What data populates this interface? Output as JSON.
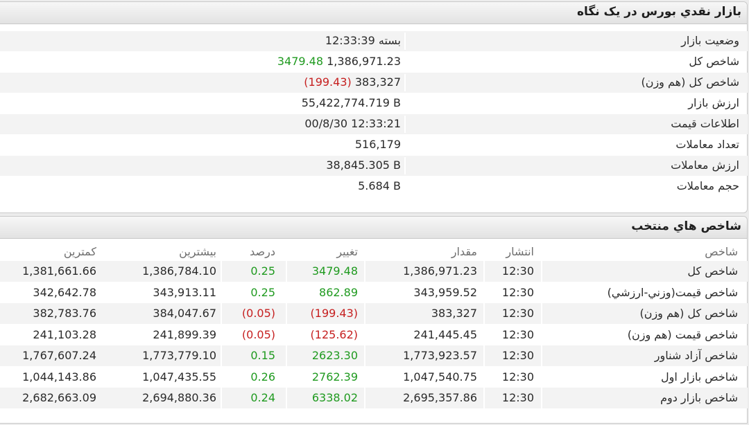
{
  "summary": {
    "title": "بازار نقدي بورس در يک نگاه",
    "rows": [
      {
        "label": "وضعيت بازار",
        "value": "بسته 12:33:39",
        "extra": "",
        "extra_class": ""
      },
      {
        "label": "شاخص کل",
        "value": "1,386,971.23",
        "extra": "3479.48",
        "extra_class": "pos"
      },
      {
        "label": "شاخص کل (هم وزن)",
        "value": "383,327",
        "extra": "(199.43)",
        "extra_class": "neg"
      },
      {
        "label": "ارزش بازار",
        "value": "55,422,774.719 B",
        "extra": "",
        "extra_class": ""
      },
      {
        "label": "اطلاعات قيمت",
        "value": "00/8/30 12:33:21",
        "extra": "",
        "extra_class": ""
      },
      {
        "label": "تعداد معاملات",
        "value": "516,179",
        "extra": "",
        "extra_class": ""
      },
      {
        "label": "ارزش معاملات",
        "value": "38,845.305 B",
        "extra": "",
        "extra_class": ""
      },
      {
        "label": "حجم معاملات",
        "value": "5.684 B",
        "extra": "",
        "extra_class": ""
      }
    ]
  },
  "indices": {
    "title": "شاخص هاي منتخب",
    "headers": {
      "name": "شاخص",
      "time": "انتشار",
      "amount": "مقدار",
      "change": "تغيير",
      "percent": "درصد",
      "high": "بيشترين",
      "low": "کمترين"
    },
    "rows": [
      {
        "name": "شاخص کل",
        "time": "12:30",
        "amount": "1,386,971.23",
        "change": "3479.48",
        "percent": "0.25",
        "high": "1,386,784.10",
        "low": "1,381,661.66",
        "dir": "pos"
      },
      {
        "name": "شاخص قيمت(وزني-ارزشي)",
        "time": "12:30",
        "amount": "343,959.52",
        "change": "862.89",
        "percent": "0.25",
        "high": "343,913.11",
        "low": "342,642.78",
        "dir": "pos"
      },
      {
        "name": "شاخص کل (هم وزن)",
        "time": "12:30",
        "amount": "383,327",
        "change": "(199.43)",
        "percent": "(0.05)",
        "high": "384,047.67",
        "low": "382,783.76",
        "dir": "neg"
      },
      {
        "name": "شاخص قيمت (هم وزن)",
        "time": "12:30",
        "amount": "241,445.45",
        "change": "(125.62)",
        "percent": "(0.05)",
        "high": "241,899.39",
        "low": "241,103.28",
        "dir": "neg"
      },
      {
        "name": "شاخص آزاد شناور",
        "time": "12:30",
        "amount": "1,773,923.57",
        "change": "2623.30",
        "percent": "0.15",
        "high": "1,773,779.10",
        "low": "1,767,607.24",
        "dir": "pos"
      },
      {
        "name": "شاخص بازار اول",
        "time": "12:30",
        "amount": "1,047,540.75",
        "change": "2762.39",
        "percent": "0.26",
        "high": "1,047,435.55",
        "low": "1,044,143.86",
        "dir": "pos"
      },
      {
        "name": "شاخص بازار دوم",
        "time": "12:30",
        "amount": "2,695,357.86",
        "change": "6338.02",
        "percent": "0.24",
        "high": "2,694,880.36",
        "low": "2,682,663.09",
        "dir": "pos"
      }
    ]
  },
  "colors": {
    "positive": "#1f9a1f",
    "negative": "#c62020",
    "header_bg": "#e6e6e6"
  }
}
